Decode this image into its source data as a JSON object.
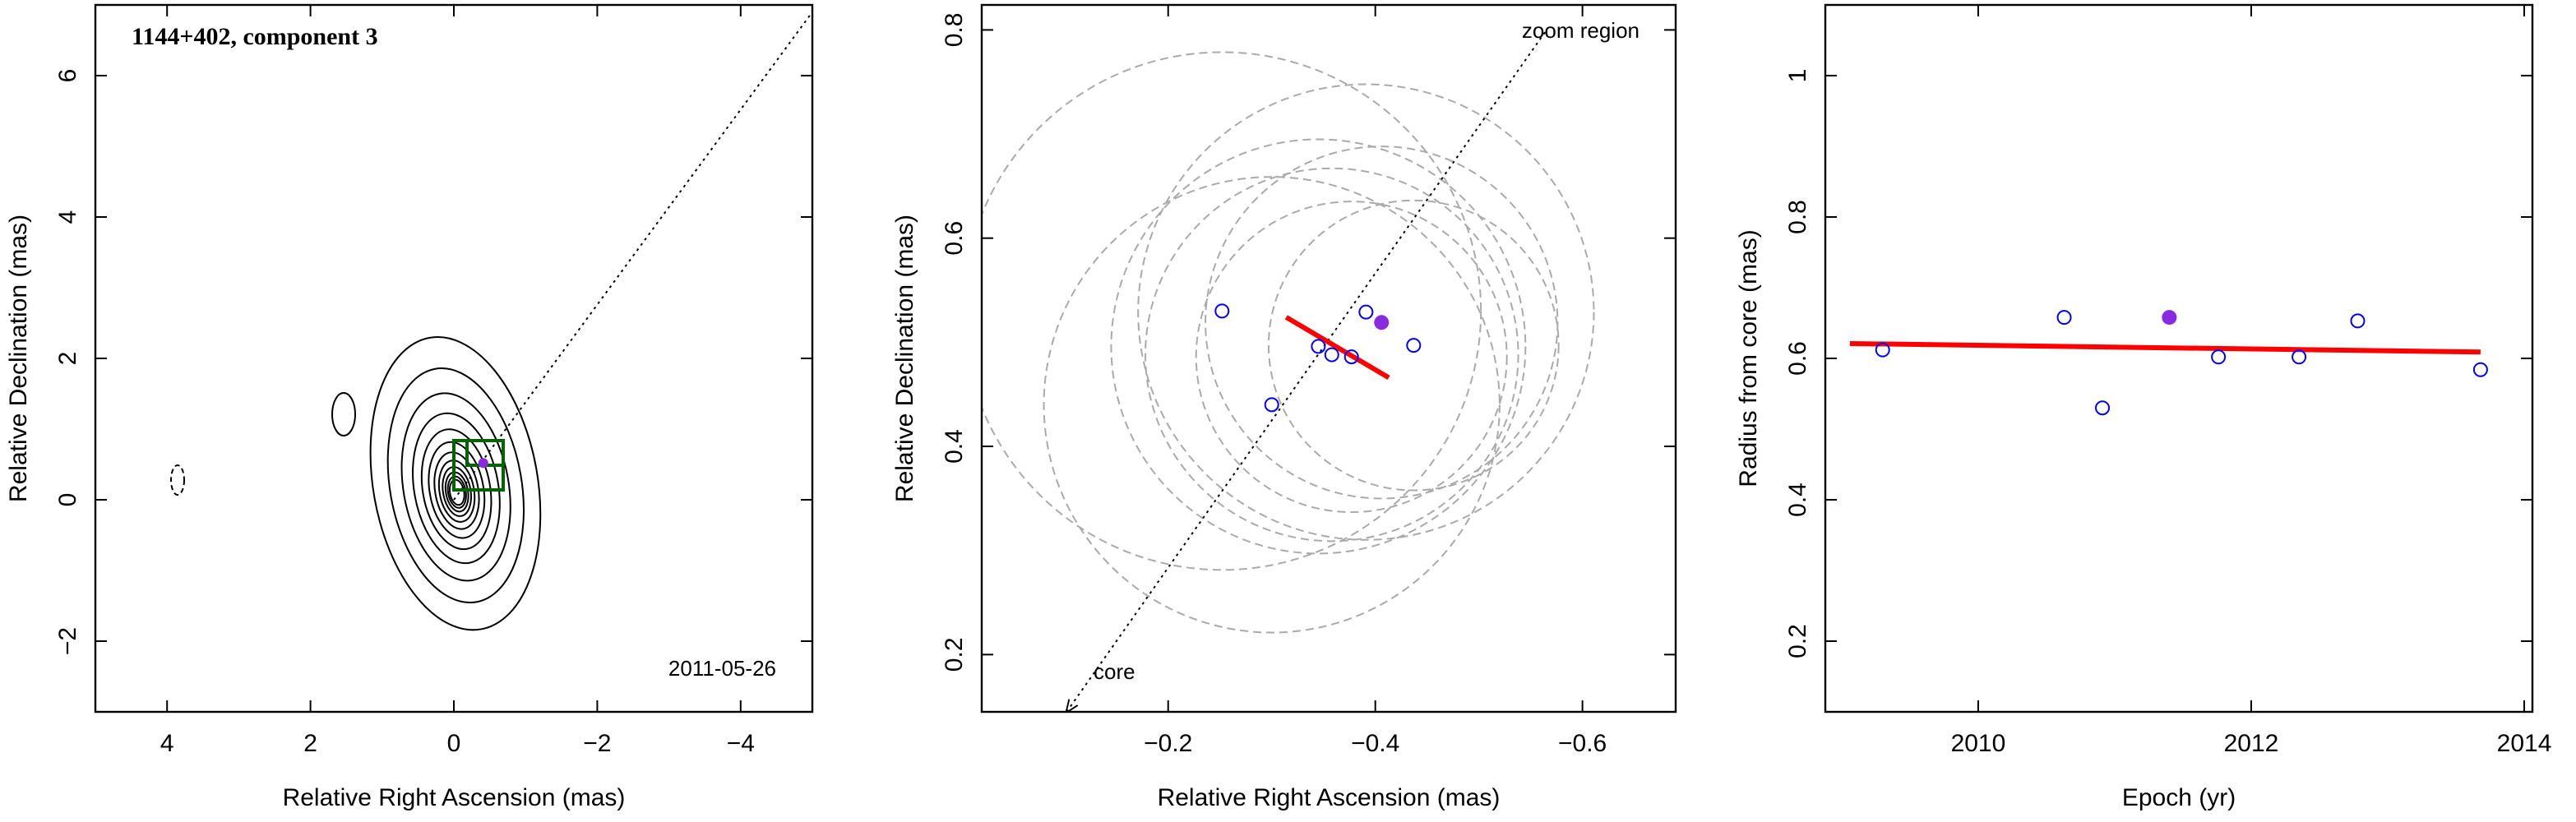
{
  "chart_data": [
    {
      "type": "contour",
      "title": "1144+402, component 3",
      "date": "2011-05-26",
      "xlabel": "Relative Right Ascension (mas)",
      "ylabel": "Relative Declination (mas)",
      "xlim": [
        5,
        -5
      ],
      "ylim": [
        -3,
        7
      ],
      "xticks": [
        4,
        2,
        0,
        {
          "value": -2,
          "label": "−2"
        },
        {
          "value": -4,
          "label": "−4"
        }
      ],
      "yticks": [
        {
          "value": -2,
          "label": "−2"
        },
        0,
        2,
        4,
        6
      ],
      "direction": {
        "x": [
          0,
          -5
        ],
        "y": [
          0,
          6.9
        ]
      },
      "component": {
        "x": -0.41,
        "y": 0.52,
        "color": "#8a2be2"
      },
      "contour_color": "#000000",
      "box_color": "#006400"
    },
    {
      "type": "scatter",
      "xlabel": "Relative Right Ascension (mas)",
      "ylabel": "Relative Declination (mas)",
      "xlim": [
        -0.02,
        -0.69
      ],
      "ylim": [
        0.145,
        0.824
      ],
      "xticks": [
        {
          "value": -0.2,
          "label": "−0.2"
        },
        {
          "value": -0.4,
          "label": "−0.4"
        },
        {
          "value": -0.6,
          "label": "−0.6"
        }
      ],
      "yticks": [
        0.2,
        0.4,
        0.6,
        0.8
      ],
      "points": {
        "x": [
          -0.252,
          -0.3,
          -0.345,
          -0.358,
          -0.377,
          -0.391,
          -0.437
        ],
        "y": [
          0.53,
          0.44,
          0.496,
          0.488,
          0.486,
          0.529,
          0.497
        ],
        "radius": [
          0.25,
          0.22,
          0.2,
          0.18,
          0.15,
          0.22,
          0.14
        ],
        "color": "#0000ff"
      },
      "highlight": {
        "x": -0.406,
        "y": 0.519,
        "radius": 0.17,
        "color": "#8a2be2"
      },
      "error_color": "#aaaaaa",
      "fit": {
        "x": [
          -0.314,
          -0.413
        ],
        "y": [
          0.524,
          0.466
        ],
        "color": "#ff0000"
      },
      "direction": {
        "x": [
          -0.102,
          -0.564
        ],
        "y": [
          0.145,
          0.798
        ]
      },
      "annotations": [
        "zoom region",
        "core"
      ]
    },
    {
      "type": "scatter",
      "xlabel": "Epoch (yr)",
      "ylabel": "Radius from core (mas)",
      "xlim": [
        2008.88,
        2014.06
      ],
      "ylim": [
        0.1,
        1.1
      ],
      "xticks": [
        2010,
        2012,
        2014
      ],
      "yticks": [
        0.2,
        0.4,
        0.6,
        0.8,
        1
      ],
      "points": {
        "x": [
          2009.3,
          2010.63,
          2010.91,
          2011.76,
          2012.35,
          2012.78,
          2013.68
        ],
        "y": [
          0.612,
          0.658,
          0.53,
          0.602,
          0.602,
          0.653,
          0.584
        ],
        "color": "#0000ff"
      },
      "highlight": {
        "x": 2011.4,
        "y": 0.658,
        "color": "#8a2be2"
      },
      "fit": {
        "x": [
          2009.06,
          2013.68
        ],
        "y": [
          0.621,
          0.609
        ],
        "color": "#ff0000"
      }
    }
  ]
}
